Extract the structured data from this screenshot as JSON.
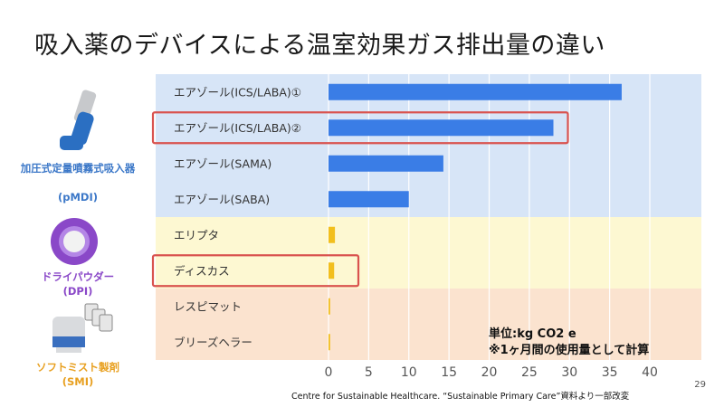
{
  "title": "吸入薬のデバイスによる温室効果ガス排出量の違い",
  "devices": [
    {
      "label": "加圧式定量噴霧式吸入器",
      "sub": "(pMDI)",
      "color": "#3c78c8"
    },
    {
      "label": "ドライパウダー",
      "sub": "(DPI)",
      "color": "#8a48c8"
    },
    {
      "label": "ソフトミスト製剤",
      "sub": "(SMI)",
      "color": "#e8a020"
    }
  ],
  "notes": {
    "unit": "単位:kg CO2 e",
    "basis": "※1ヶ月間の使用量として計算"
  },
  "page_number": "29",
  "source": "Centre for Sustainable Healthcare. “Sustainable Primary Care”資料より一部改変",
  "chart_data": {
    "type": "bar",
    "orientation": "horizontal",
    "categories": [
      "エアゾール(ICS/LABA)①",
      "エアゾール(ICS/LABA)②",
      "エアゾール(SAMA)",
      "エアゾール(SABA)",
      "エリプタ",
      "ディスカス",
      "レスピマット",
      "ブリーズヘラー"
    ],
    "values": [
      36.5,
      28,
      14.3,
      10,
      0.8,
      0.7,
      0.2,
      0.2
    ],
    "xticks": [
      0,
      5,
      10,
      15,
      20,
      25,
      30,
      35,
      40
    ],
    "xlim": [
      0,
      40
    ],
    "highlighted": [
      1,
      5
    ],
    "groups": [
      {
        "device": "pMDI",
        "rows": [
          0,
          1,
          2,
          3
        ],
        "bg": "#d7e5f7",
        "bar": "#3a7de6"
      },
      {
        "device": "DPI",
        "rows": [
          4,
          5
        ],
        "bg": "#fdf8d2",
        "bar": "#f2bf1d"
      },
      {
        "device": "SMI",
        "rows": [
          6,
          7
        ],
        "bg": "#fbe3cf",
        "bar": "#f2bf1d"
      }
    ],
    "highlight_color": "#d9534f"
  }
}
